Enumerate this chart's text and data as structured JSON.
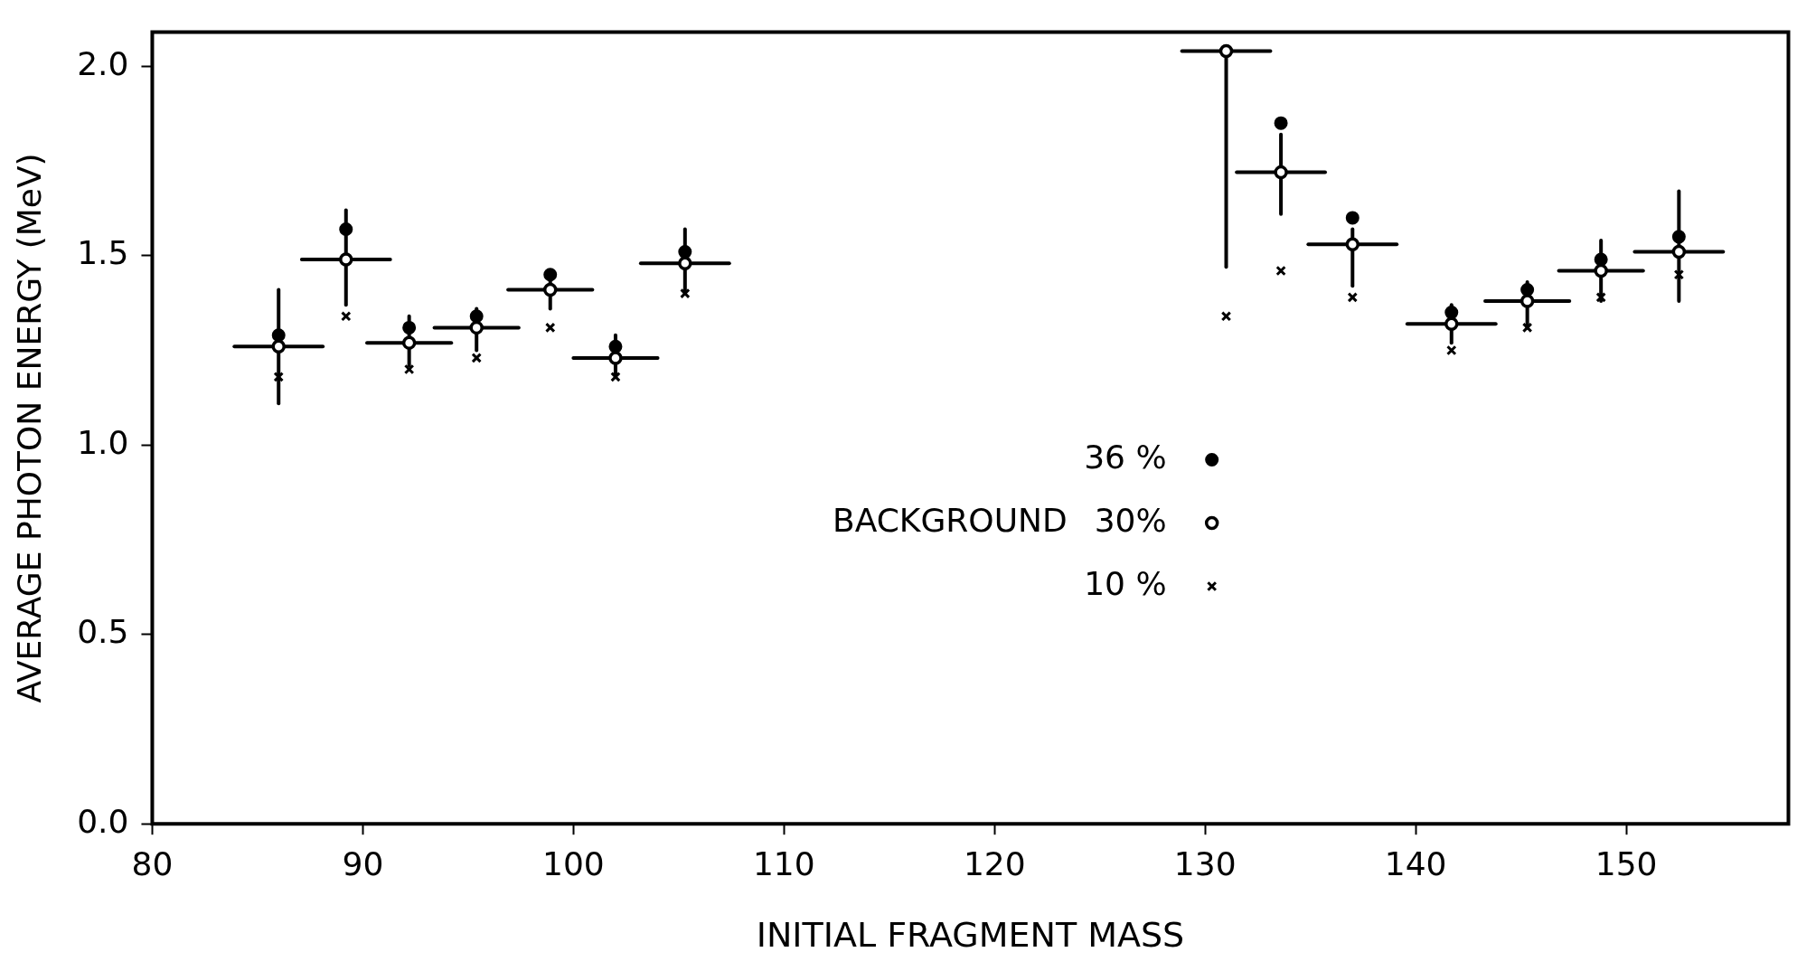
{
  "chart_data": {
    "type": "scatter",
    "xlabel": "INITIAL FRAGMENT MASS",
    "ylabel": "AVERAGE PHOTON ENERGY (MeV)",
    "legend_title": "BACKGROUND",
    "legend": "center",
    "grid": false,
    "x": [
      86.0,
      89.2,
      92.2,
      95.4,
      98.9,
      102.0,
      105.3,
      131.0,
      133.6,
      137.0,
      141.7,
      145.3,
      148.8,
      152.5
    ],
    "series": [
      {
        "name": "36 %",
        "color": "#000000",
        "marker": "circle",
        "values": [
          1.29,
          1.57,
          1.31,
          1.34,
          1.45,
          1.26,
          1.51,
          null,
          1.85,
          1.6,
          1.35,
          1.41,
          1.49,
          1.55
        ]
      },
      {
        "name": "30%",
        "color": "#000000",
        "marker": "open_circle",
        "values": [
          1.26,
          1.49,
          1.27,
          1.31,
          1.41,
          1.23,
          1.48,
          2.04,
          1.72,
          1.53,
          1.32,
          1.38,
          1.46,
          1.51
        ],
        "errors": [
          [
            1.11,
            1.41
          ],
          [
            1.37,
            1.62
          ],
          [
            1.21,
            1.34
          ],
          [
            1.25,
            1.36
          ],
          [
            1.36,
            1.46
          ],
          [
            1.18,
            1.29
          ],
          [
            1.4,
            1.57
          ],
          [
            1.47,
            2.04
          ],
          [
            1.61,
            1.82
          ],
          [
            1.42,
            1.57
          ],
          [
            1.27,
            1.37
          ],
          [
            1.31,
            1.43
          ],
          [
            1.38,
            1.54
          ],
          [
            1.38,
            1.67
          ]
        ],
        "xerrors": [
          2.1,
          2.1,
          2.0,
          2.0,
          2.0,
          2.0,
          2.1,
          2.1,
          2.1,
          2.1,
          2.1,
          2.0,
          2.0,
          2.1
        ]
      },
      {
        "name": "10 %",
        "color": "#000000",
        "marker": "cross",
        "values": [
          1.18,
          1.34,
          1.2,
          1.23,
          1.31,
          1.18,
          1.4,
          1.34,
          1.46,
          1.39,
          1.25,
          1.31,
          1.39,
          1.45
        ]
      }
    ],
    "xlim": [
      80,
      157.7
    ],
    "xticks": [
      80,
      90,
      100,
      110,
      120,
      130,
      140,
      150
    ],
    "ylim": [
      0,
      2.09
    ],
    "yticks": [
      {
        "value": 0,
        "label": "0.0"
      },
      {
        "value": 0.5,
        "label": "0.5"
      },
      {
        "value": 1,
        "label": "1.0"
      },
      {
        "value": 1.5,
        "label": "1.5"
      },
      {
        "value": 2,
        "label": "2.0"
      }
    ]
  }
}
